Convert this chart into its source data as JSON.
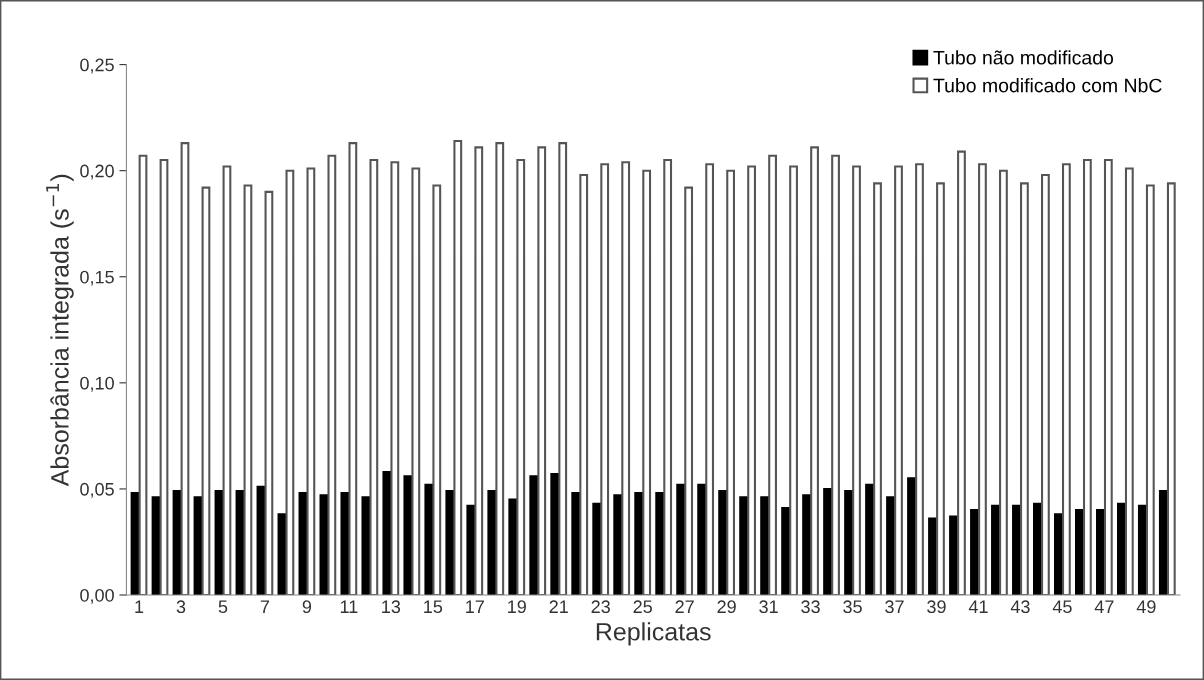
{
  "chart_data": {
    "type": "bar",
    "xlabel": "Replicatas",
    "ylabel": "Absorbância integrada (s$^{−1}$)",
    "categories": [
      "1",
      null,
      "3",
      null,
      "5",
      null,
      "7",
      null,
      "9",
      null,
      "11",
      null,
      "13",
      null,
      "15",
      null,
      "17",
      null,
      "19",
      null,
      "21",
      null,
      "23",
      null,
      "25",
      null,
      "27",
      null,
      "29",
      null,
      "31",
      null,
      "33",
      null,
      "35",
      null,
      "37",
      null,
      "39",
      null,
      "41",
      null,
      "43",
      null,
      "45",
      null,
      "47",
      null,
      "49",
      null
    ],
    "series": [
      {
        "name": "Tubo não modificado",
        "color": "#000000",
        "values": [
          0.048,
          0.046,
          0.049,
          0.046,
          0.049,
          0.049,
          0.051,
          0.038,
          0.048,
          0.047,
          0.048,
          0.046,
          0.058,
          0.056,
          0.052,
          0.049,
          0.042,
          0.049,
          0.045,
          0.056,
          0.057,
          0.048,
          0.043,
          0.047,
          0.048,
          0.048,
          0.052,
          0.052,
          0.049,
          0.046,
          0.046,
          0.041,
          0.047,
          0.05,
          0.049,
          0.052,
          0.046,
          0.055,
          0.036,
          0.037,
          0.04,
          0.042,
          0.042,
          0.043,
          0.038,
          0.04,
          0.04,
          0.043,
          0.042,
          0.049
        ]
      },
      {
        "name": "Tubo modificado com NbC",
        "color": "#ffffff",
        "values": [
          0.207,
          0.205,
          0.213,
          0.192,
          0.202,
          0.193,
          0.19,
          0.2,
          0.201,
          0.207,
          0.213,
          0.205,
          0.204,
          0.201,
          0.193,
          0.214,
          0.211,
          0.213,
          0.205,
          0.211,
          0.213,
          0.198,
          0.203,
          0.204,
          0.2,
          0.205,
          0.192,
          0.203,
          0.2,
          0.202,
          0.207,
          0.202,
          0.211,
          0.207,
          0.202,
          0.194,
          0.202,
          0.203,
          0.194,
          0.209,
          0.203,
          0.2,
          0.194,
          0.198,
          0.203,
          0.205,
          0.205,
          0.201,
          0.193,
          0.194
        ]
      }
    ],
    "ylim": [
      0,
      0.25
    ],
    "yticks": [
      {
        "value": 0,
        "label": "0,00"
      },
      {
        "value": 0.05,
        "label": "0,05"
      },
      {
        "value": 0.1,
        "label": "0,10"
      },
      {
        "value": 0.15,
        "label": "0,15"
      },
      {
        "value": 0.2,
        "label": "0,20"
      },
      {
        "value": 0.25,
        "label": "0,25"
      }
    ],
    "grid": false,
    "legend": "top right"
  }
}
